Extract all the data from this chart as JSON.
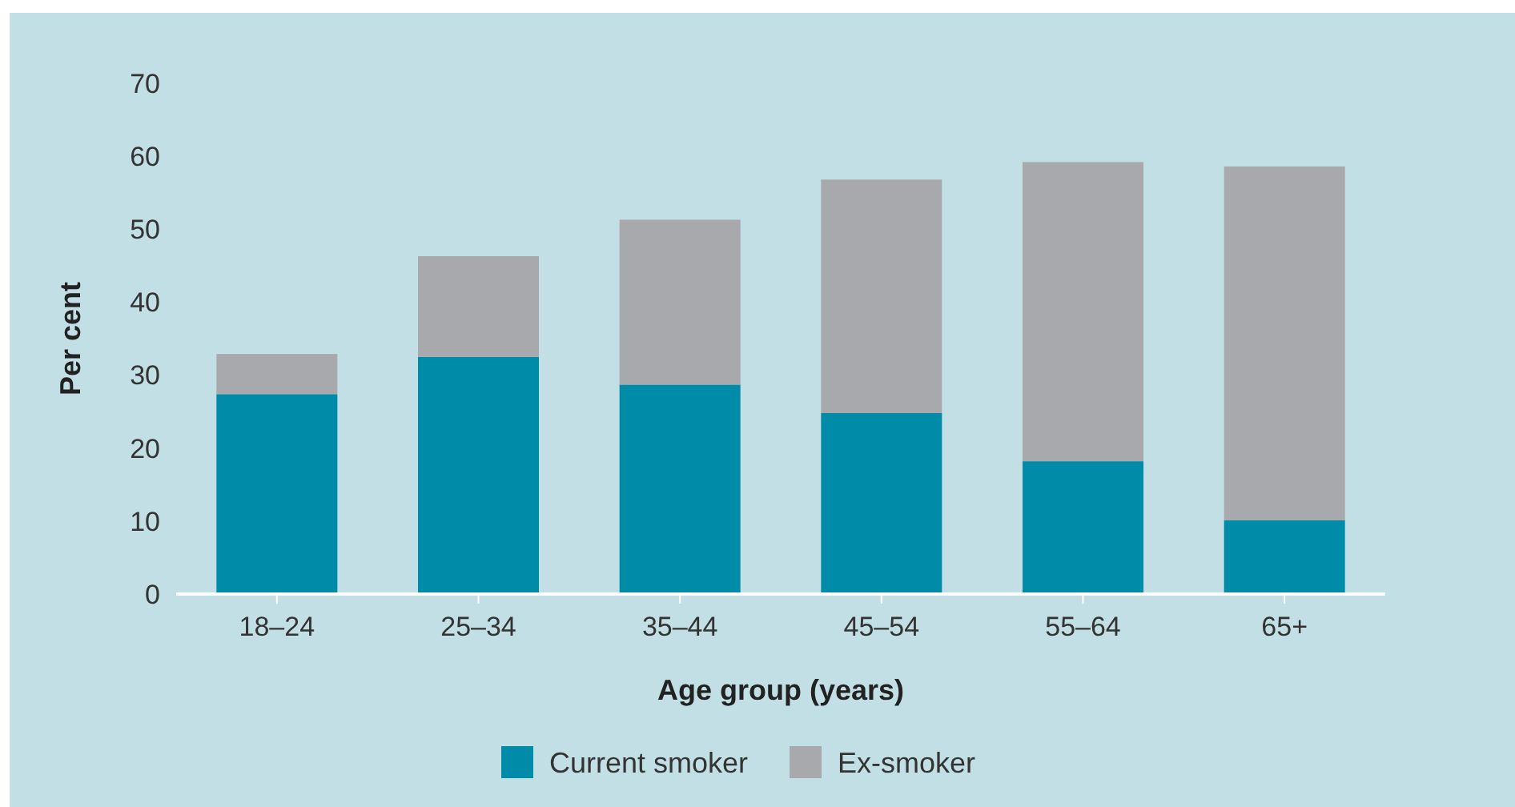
{
  "chart_data": {
    "type": "bar",
    "stacked": true,
    "xlabel": "Age group (years)",
    "ylabel": "Per cent",
    "categories": [
      "18–24",
      "25–34",
      "35–44",
      "45–54",
      "55–64",
      "65+"
    ],
    "series": [
      {
        "name": "Current smoker",
        "color": "#008ba8",
        "values": [
          27.4,
          32.5,
          28.7,
          24.8,
          18.2,
          10.1
        ]
      },
      {
        "name": "Ex-smoker",
        "color": "#a7a9ac",
        "values": [
          5.5,
          13.8,
          22.6,
          32,
          41,
          48.5
        ]
      }
    ],
    "ylim": [
      0,
      70
    ],
    "yticks": [
      0,
      10,
      20,
      30,
      40,
      50,
      60,
      70
    ],
    "grid": false,
    "legend": "bottom"
  }
}
